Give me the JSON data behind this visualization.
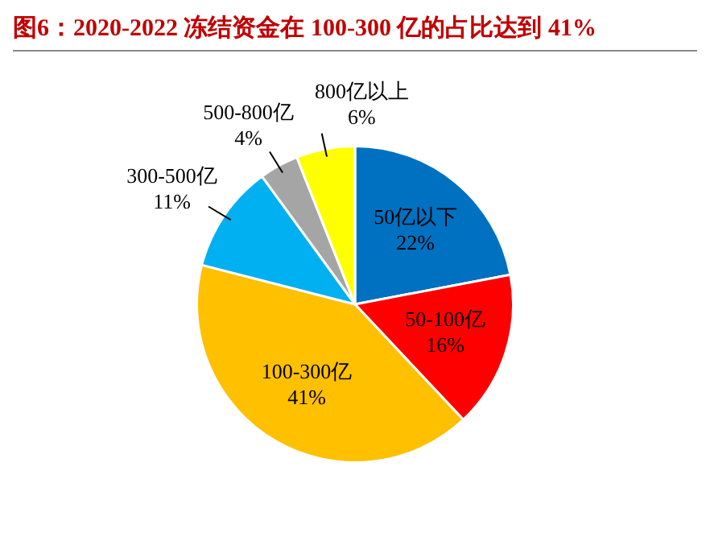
{
  "chart_data": {
    "type": "pie",
    "title": "图6：2020-2022 冻结资金在 100-300 亿的占比达到 41%",
    "categories": [
      "50亿以下",
      "50-100亿",
      "100-300亿",
      "300-500亿",
      "500-800亿",
      "800亿以上"
    ],
    "values": [
      22,
      16,
      41,
      11,
      4,
      6
    ],
    "value_labels": [
      "22%",
      "16%",
      "41%",
      "11%",
      "4%",
      "6%"
    ],
    "colors": [
      "#0070c0",
      "#ff0000",
      "#ffc000",
      "#00b0f0",
      "#a5a5a5",
      "#ffff00"
    ]
  }
}
